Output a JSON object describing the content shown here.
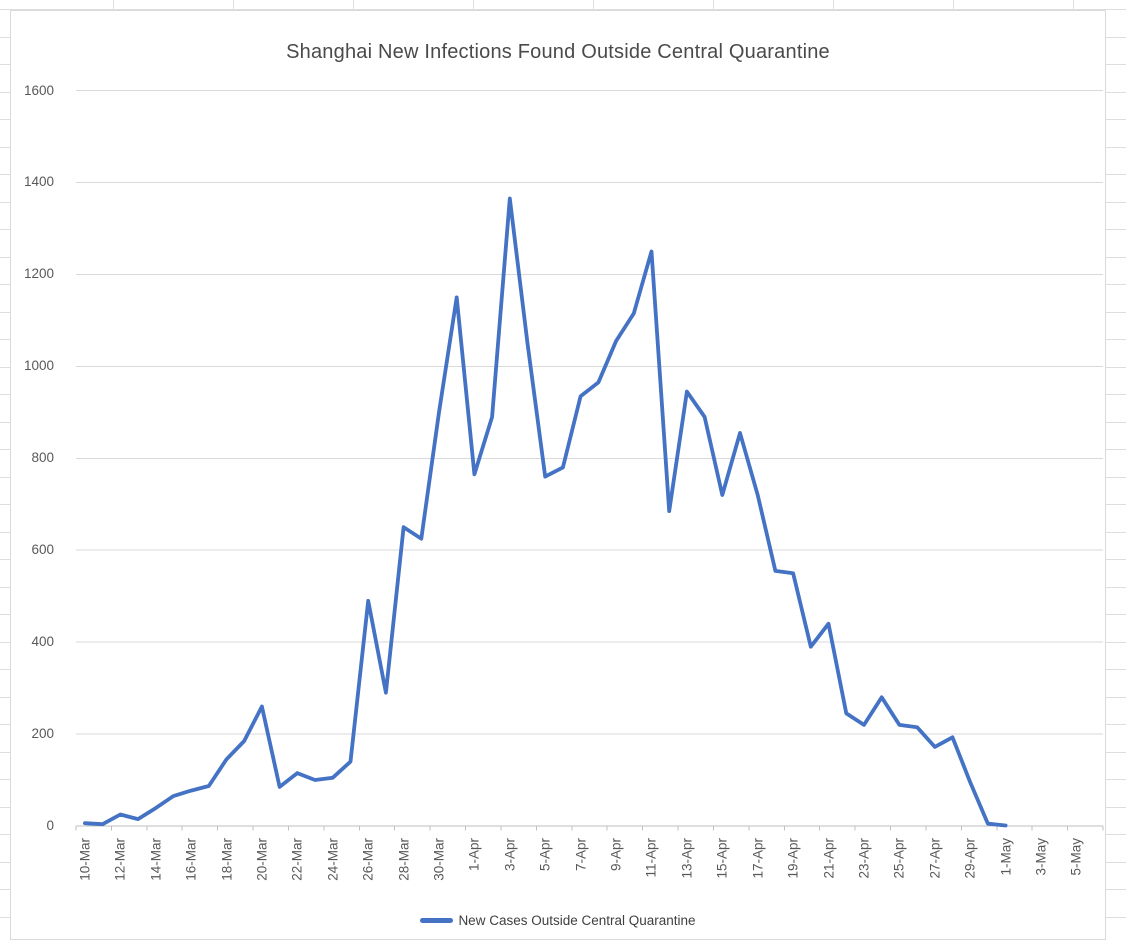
{
  "chart_data": {
    "type": "line",
    "title": "Shanghai New Infections Found Outside Central Quarantine",
    "series_name": "New Cases Outside Central Quarantine",
    "legend_position": "bottom",
    "grid": true,
    "line_color": "#4472C4",
    "axis_color": "#BFBFBF",
    "gridline_color": "#D9D9D9",
    "label_color": "#595959",
    "ylim": [
      0,
      1600
    ],
    "y_tick_step": 200,
    "y_tick_labels": [
      "0",
      "200",
      "400",
      "600",
      "800",
      "1000",
      "1200",
      "1400",
      "1600"
    ],
    "x_total_slots": 58,
    "x_tick_labels": [
      "10-Mar",
      "12-Mar",
      "14-Mar",
      "16-Mar",
      "18-Mar",
      "20-Mar",
      "22-Mar",
      "24-Mar",
      "26-Mar",
      "28-Mar",
      "30-Mar",
      "1-Apr",
      "3-Apr",
      "5-Apr",
      "7-Apr",
      "9-Apr",
      "11-Apr",
      "13-Apr",
      "15-Apr",
      "17-Apr",
      "19-Apr",
      "21-Apr",
      "23-Apr",
      "25-Apr",
      "27-Apr",
      "29-Apr",
      "1-May",
      "3-May",
      "5-May"
    ],
    "x": [
      "10-Mar",
      "11-Mar",
      "12-Mar",
      "13-Mar",
      "14-Mar",
      "15-Mar",
      "16-Mar",
      "17-Mar",
      "18-Mar",
      "19-Mar",
      "20-Mar",
      "21-Mar",
      "22-Mar",
      "23-Mar",
      "24-Mar",
      "25-Mar",
      "26-Mar",
      "27-Mar",
      "28-Mar",
      "29-Mar",
      "30-Mar",
      "31-Mar",
      "1-Apr",
      "2-Apr",
      "3-Apr",
      "4-Apr",
      "5-Apr",
      "6-Apr",
      "7-Apr",
      "8-Apr",
      "9-Apr",
      "10-Apr",
      "11-Apr",
      "12-Apr",
      "13-Apr",
      "14-Apr",
      "15-Apr",
      "16-Apr",
      "17-Apr",
      "18-Apr",
      "19-Apr",
      "20-Apr",
      "21-Apr",
      "22-Apr",
      "23-Apr",
      "24-Apr",
      "25-Apr",
      "26-Apr",
      "27-Apr",
      "28-Apr",
      "29-Apr",
      "30-Apr",
      "1-May"
    ],
    "values": [
      6,
      4,
      25,
      15,
      39,
      65,
      77,
      87,
      145,
      185,
      260,
      85,
      115,
      100,
      105,
      140,
      490,
      290,
      650,
      625,
      900,
      1150,
      765,
      890,
      1365,
      1050,
      760,
      780,
      935,
      965,
      1055,
      1115,
      1250,
      685,
      945,
      890,
      720,
      855,
      720,
      555,
      550,
      390,
      440,
      245,
      220,
      280,
      220,
      215,
      172,
      193,
      95,
      5,
      1
    ]
  }
}
